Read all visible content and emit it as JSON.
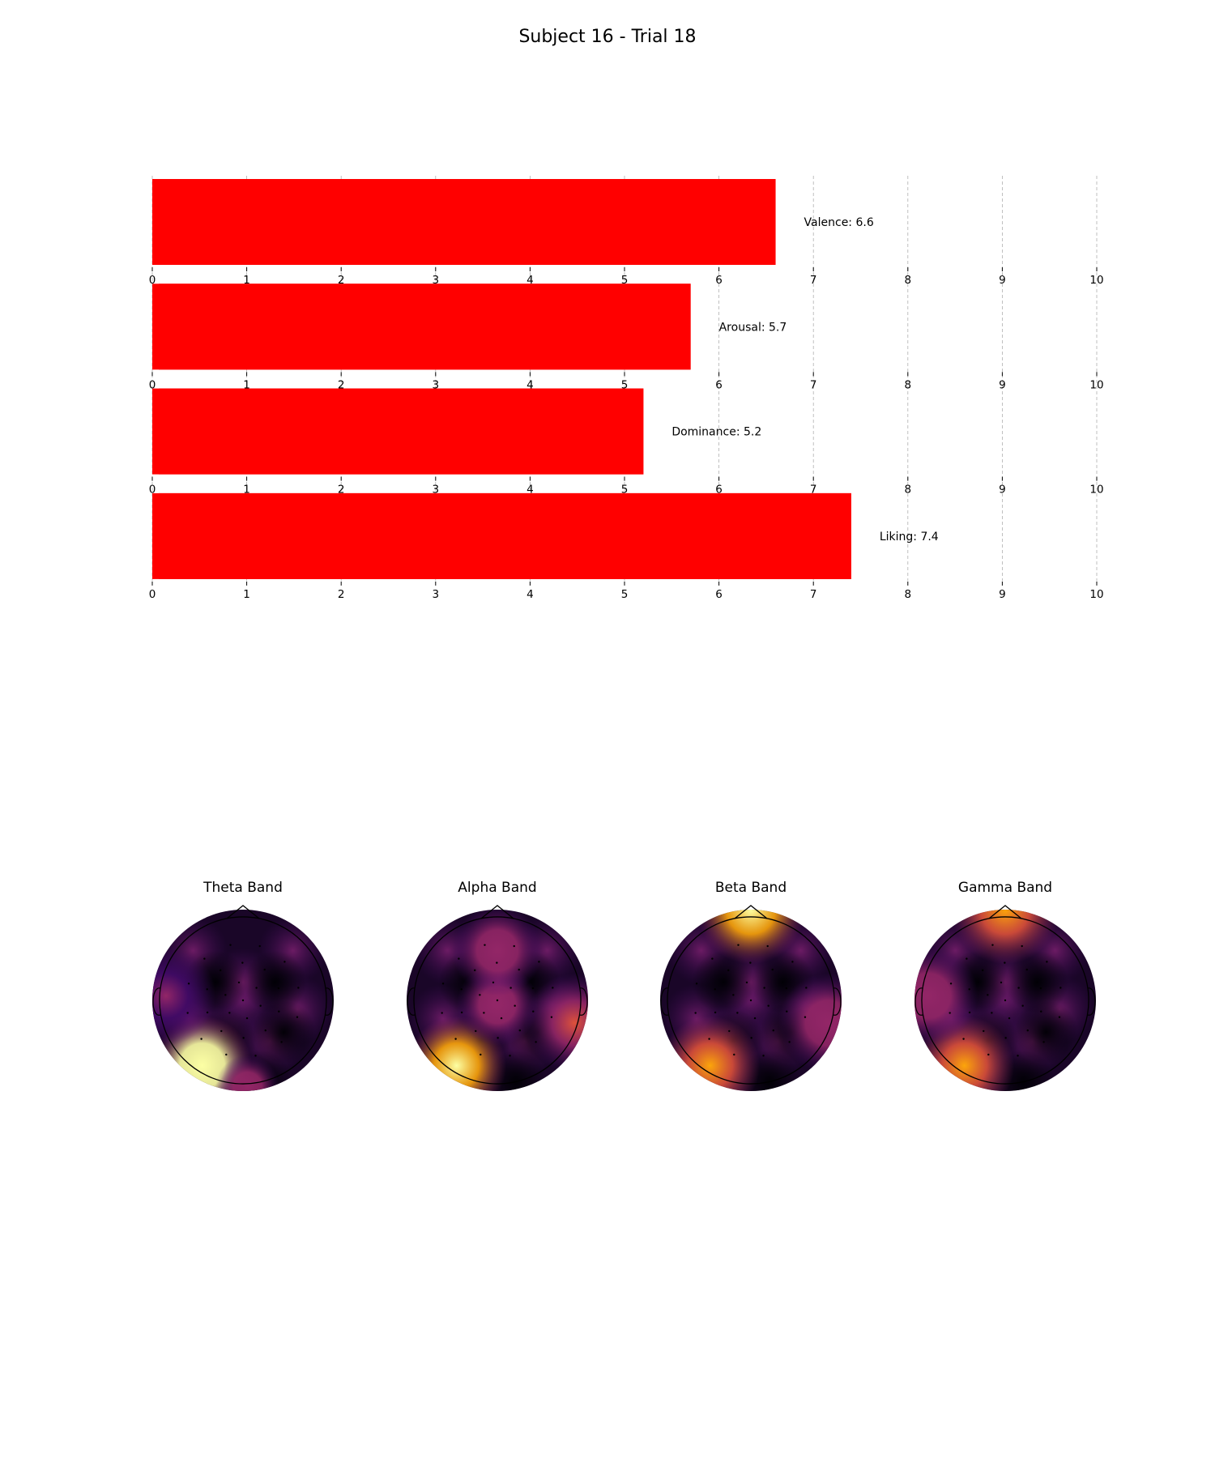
{
  "figure": {
    "title": "Subject 16 - Trial 18"
  },
  "chart_data": [
    {
      "type": "bar",
      "orientation": "horizontal",
      "categories": [
        "Valence",
        "Arousal",
        "Dominance",
        "Liking"
      ],
      "values": [
        6.6,
        5.7,
        5.2,
        7.4
      ],
      "labels": [
        "Valence: 6.6",
        "Arousal: 5.7",
        "Dominance: 5.2",
        "Liking: 7.4"
      ],
      "xlim": [
        0,
        10
      ],
      "xticks": [
        "0",
        "1",
        "2",
        "3",
        "4",
        "5",
        "6",
        "7",
        "8",
        "9",
        "10"
      ],
      "grid": "x, dashed",
      "bar_color": "#ff0000"
    },
    {
      "type": "heatmap",
      "kind": "topographic scalp map",
      "colormap": "inferno",
      "panels": [
        {
          "title": "Theta Band",
          "hotspots": [
            {
              "region": "left-occipital",
              "intensity": 1.0
            },
            {
              "region": "right-occipital",
              "intensity": 0.45
            },
            {
              "region": "left-temporal",
              "intensity": 0.3
            }
          ]
        },
        {
          "title": "Alpha Band",
          "hotspots": [
            {
              "region": "left-occipital",
              "intensity": 0.95
            },
            {
              "region": "right-temporal",
              "intensity": 0.55
            },
            {
              "region": "central",
              "intensity": 0.35
            },
            {
              "region": "frontal",
              "intensity": 0.35
            }
          ]
        },
        {
          "title": "Beta Band",
          "hotspots": [
            {
              "region": "frontal-pole",
              "intensity": 0.8
            },
            {
              "region": "left-occipital",
              "intensity": 0.75
            },
            {
              "region": "right-temporal",
              "intensity": 0.35
            }
          ]
        },
        {
          "title": "Gamma Band",
          "hotspots": [
            {
              "region": "frontal-pole",
              "intensity": 0.75
            },
            {
              "region": "left-occipital",
              "intensity": 0.7
            },
            {
              "region": "left-temporal",
              "intensity": 0.35
            }
          ]
        }
      ]
    }
  ]
}
